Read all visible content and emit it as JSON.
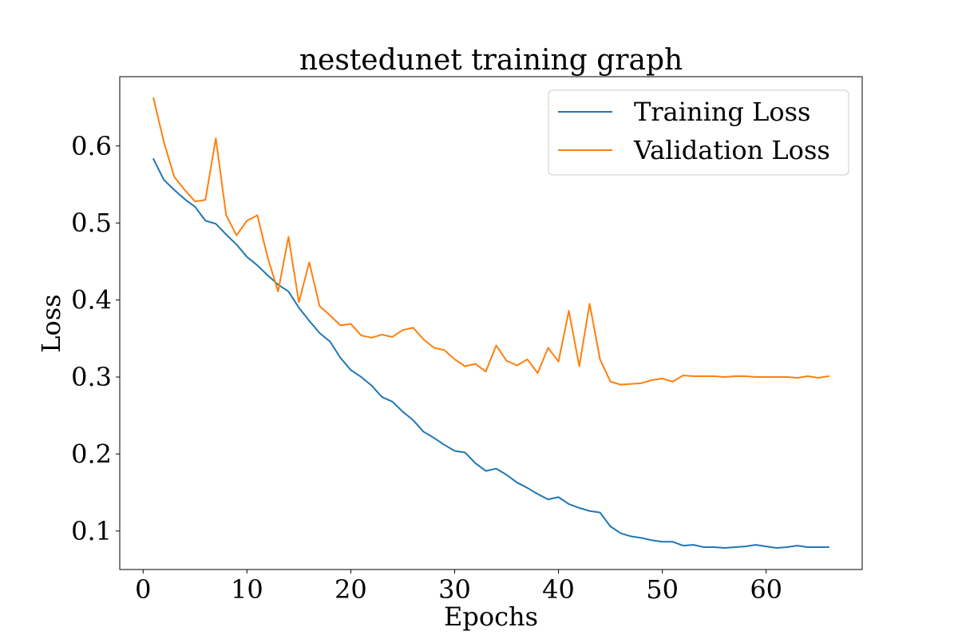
{
  "chart_data": {
    "type": "line",
    "title": "nestedunet training graph",
    "xlabel": "Epochs",
    "ylabel": "Loss",
    "xlim": [
      -2.25,
      69.25
    ],
    "ylim": [
      0.05,
      0.69
    ],
    "xticks": [
      0,
      10,
      20,
      30,
      40,
      50,
      60
    ],
    "xtick_labels": [
      "0",
      "10",
      "20",
      "30",
      "40",
      "50",
      "60"
    ],
    "yticks": [
      0.1,
      0.2,
      0.3,
      0.4,
      0.5,
      0.6
    ],
    "ytick_labels": [
      "0.1",
      "0.2",
      "0.3",
      "0.4",
      "0.5",
      "0.6"
    ],
    "grid": false,
    "legend_position": "top-right",
    "x": [
      1,
      2,
      3,
      4,
      5,
      6,
      7,
      8,
      9,
      10,
      11,
      12,
      13,
      14,
      15,
      16,
      17,
      18,
      19,
      20,
      21,
      22,
      23,
      24,
      25,
      26,
      27,
      28,
      29,
      30,
      31,
      32,
      33,
      34,
      35,
      36,
      37,
      38,
      39,
      40,
      41,
      42,
      43,
      44,
      45,
      46,
      47,
      48,
      49,
      50,
      51,
      52,
      53,
      54,
      55,
      56,
      57,
      58,
      59,
      60,
      61,
      62,
      63,
      64,
      65,
      66
    ],
    "series": [
      {
        "name": "Training Loss",
        "color": "#1f77b4",
        "values": [
          0.583,
          0.556,
          0.543,
          0.531,
          0.521,
          0.503,
          0.499,
          0.485,
          0.472,
          0.456,
          0.445,
          0.432,
          0.42,
          0.411,
          0.39,
          0.373,
          0.357,
          0.346,
          0.325,
          0.309,
          0.3,
          0.289,
          0.274,
          0.268,
          0.255,
          0.244,
          0.229,
          0.221,
          0.212,
          0.204,
          0.202,
          0.188,
          0.178,
          0.181,
          0.173,
          0.163,
          0.156,
          0.148,
          0.141,
          0.144,
          0.135,
          0.13,
          0.126,
          0.124,
          0.106,
          0.097,
          0.093,
          0.091,
          0.088,
          0.086,
          0.086,
          0.081,
          0.082,
          0.079,
          0.079,
          0.078,
          0.079,
          0.08,
          0.082,
          0.08,
          0.078,
          0.079,
          0.081,
          0.079,
          0.079,
          0.079
        ]
      },
      {
        "name": "Validation Loss",
        "color": "#ff7f0e",
        "values": [
          0.662,
          0.605,
          0.56,
          0.543,
          0.528,
          0.53,
          0.61,
          0.51,
          0.484,
          0.503,
          0.51,
          0.455,
          0.411,
          0.482,
          0.397,
          0.449,
          0.392,
          0.38,
          0.367,
          0.369,
          0.354,
          0.351,
          0.355,
          0.352,
          0.361,
          0.364,
          0.349,
          0.338,
          0.335,
          0.323,
          0.314,
          0.317,
          0.307,
          0.341,
          0.321,
          0.315,
          0.323,
          0.305,
          0.338,
          0.32,
          0.386,
          0.314,
          0.395,
          0.323,
          0.294,
          0.29,
          0.291,
          0.292,
          0.296,
          0.298,
          0.294,
          0.302,
          0.301,
          0.301,
          0.301,
          0.3,
          0.301,
          0.301,
          0.3,
          0.3,
          0.3,
          0.3,
          0.299,
          0.301,
          0.299,
          0.301
        ]
      }
    ]
  }
}
